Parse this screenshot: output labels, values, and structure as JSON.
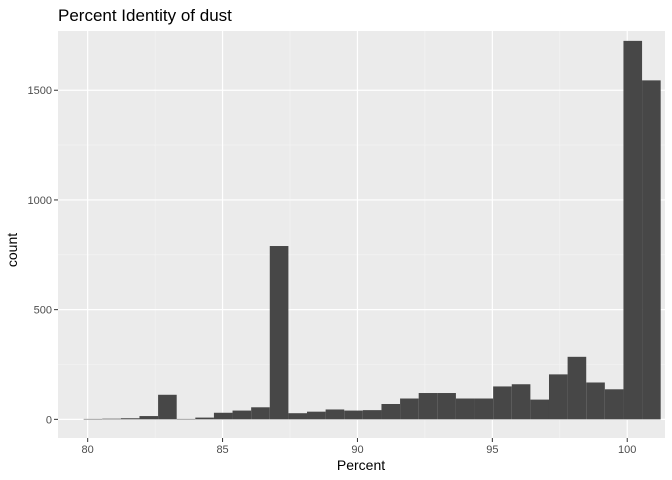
{
  "chart_data": {
    "type": "bar",
    "title": "Percent Identity of dust",
    "xlabel": "Percent",
    "ylabel": "count",
    "xlim": [
      78.9,
      101.4
    ],
    "ylim": [
      -85,
      1770
    ],
    "x_ticks": [
      80,
      85,
      90,
      95,
      100
    ],
    "x_minor_ticks": [
      82.5,
      87.5,
      92.5,
      97.5
    ],
    "y_ticks": [
      0,
      500,
      1000,
      1500
    ],
    "y_minor_ticks": [
      250,
      750,
      1250
    ],
    "grid": true,
    "bin_width": 0.69,
    "bin_start": 79.85,
    "values": [
      2,
      3,
      5,
      15,
      112,
      2,
      8,
      30,
      40,
      55,
      790,
      28,
      35,
      45,
      40,
      42,
      70,
      95,
      120,
      120,
      95,
      95,
      150,
      160,
      90,
      205,
      285,
      168,
      137,
      1725,
      1545
    ],
    "colors": {
      "panel": "#ebebeb",
      "grid_major": "#ffffff",
      "grid_minor": "#f5f5f5",
      "bar": "#474747"
    }
  }
}
